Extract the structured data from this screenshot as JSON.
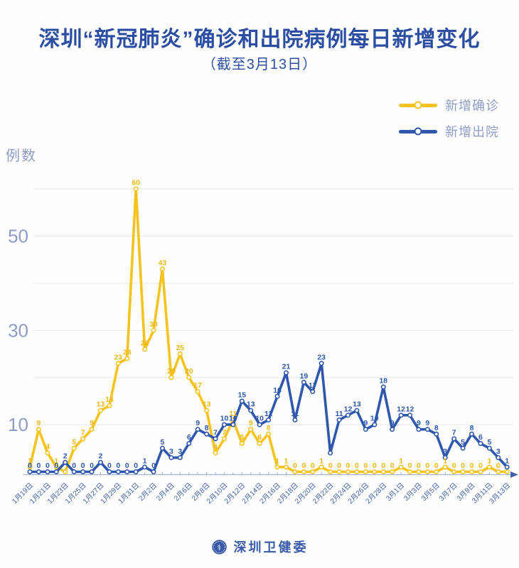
{
  "page": {
    "background": "#ffffff"
  },
  "header": {
    "title": "深圳“新冠肺炎”确诊和出院病例每日新增变化",
    "subtitle": "（截至3月13日）",
    "title_color": "#2b4ea3"
  },
  "legend": {
    "items": [
      {
        "label": "新增确诊",
        "color": "#f5c31e"
      },
      {
        "label": "新增出院",
        "color": "#2f57ad"
      }
    ],
    "text_color": "#8e9bc6"
  },
  "chart_data": {
    "type": "line",
    "title": "深圳“新冠肺炎”确诊和出院病例每日新增变化（截至3月13日）",
    "ylabel": "例数",
    "ylim": [
      0,
      63
    ],
    "yticks": [
      10,
      30,
      50
    ],
    "gridlines": [
      10,
      20,
      30,
      40,
      50,
      60
    ],
    "grid": true,
    "legend_position": "top-right",
    "x_label_step": 2,
    "categories": [
      "1月19日",
      "1月20日",
      "1月21日",
      "1月22日",
      "1月23日",
      "1月24日",
      "1月25日",
      "1月26日",
      "1月27日",
      "1月28日",
      "1月29日",
      "1月30日",
      "1月31日",
      "2月1日",
      "2月2日",
      "2月3日",
      "2月4日",
      "2月5日",
      "2月6日",
      "2月7日",
      "2月8日",
      "2月9日",
      "2月10日",
      "2月11日",
      "2月12日",
      "2月13日",
      "2月14日",
      "2月15日",
      "2月16日",
      "2月17日",
      "2月18日",
      "2月19日",
      "2月20日",
      "2月21日",
      "2月22日",
      "2月23日",
      "2月24日",
      "2月25日",
      "2月26日",
      "2月27日",
      "2月28日",
      "2月29日",
      "3月1日",
      "3月2日",
      "3月3日",
      "3月4日",
      "3月5日",
      "3月6日",
      "3月7日",
      "3月8日",
      "3月9日",
      "3月10日",
      "3月11日",
      "3月12日",
      "3月13日"
    ],
    "series": [
      {
        "name": "新增确诊",
        "color": "#f5c31e",
        "label_color": "#efb813",
        "values": [
          1,
          9,
          4,
          1,
          0,
          5,
          7,
          9,
          13,
          14,
          23,
          24,
          60,
          26,
          30,
          43,
          20,
          25,
          20,
          17,
          13,
          4,
          7,
          11,
          6,
          9,
          6,
          8,
          1,
          1,
          0,
          0,
          0,
          1,
          0,
          0,
          0,
          0,
          0,
          0,
          0,
          0,
          1,
          0,
          0,
          0,
          0,
          1,
          0,
          0,
          0,
          0,
          1,
          0,
          0
        ],
        "hidden_label_indices": [
          4,
          54
        ]
      },
      {
        "name": "新增出院",
        "color": "#2f57ad",
        "label_color": "#2f57ad",
        "values": [
          0,
          0,
          0,
          0,
          2,
          0,
          0,
          0,
          2,
          0,
          0,
          0,
          0,
          1,
          0,
          5,
          3,
          3,
          6,
          9,
          8,
          7,
          10,
          10,
          15,
          13,
          10,
          11,
          16,
          21,
          11,
          19,
          17,
          23,
          4,
          11,
          12,
          13,
          9,
          10,
          18,
          9,
          12,
          12,
          9,
          9,
          8,
          3,
          7,
          5,
          8,
          6,
          5,
          3,
          1
        ],
        "hidden_label_indices": []
      }
    ],
    "axis_color": "#a3b2d6",
    "grid_color": "#e5e6ea",
    "tick_label_color": "#8e9bc6",
    "date_label_color": "#4262ab"
  },
  "footer": {
    "org": "深圳卫健委",
    "logo": "shenzhen-health-commission-seal"
  }
}
